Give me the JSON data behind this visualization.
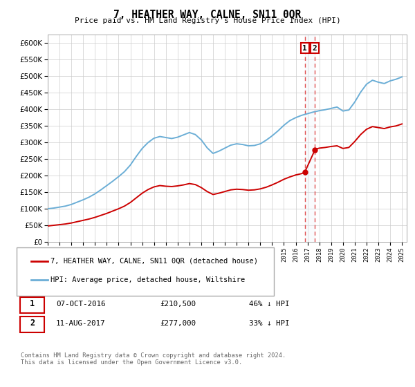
{
  "title": "7, HEATHER WAY, CALNE, SN11 0QR",
  "subtitle": "Price paid vs. HM Land Registry's House Price Index (HPI)",
  "legend_line1": "7, HEATHER WAY, CALNE, SN11 0QR (detached house)",
  "legend_line2": "HPI: Average price, detached house, Wiltshire",
  "transaction1_label": "1",
  "transaction1_date": "07-OCT-2016",
  "transaction1_price": "£210,500",
  "transaction1_hpi": "46% ↓ HPI",
  "transaction2_label": "2",
  "transaction2_date": "11-AUG-2017",
  "transaction2_price": "£277,000",
  "transaction2_hpi": "33% ↓ HPI",
  "footer": "Contains HM Land Registry data © Crown copyright and database right 2024.\nThis data is licensed under the Open Government Licence v3.0.",
  "hpi_color": "#6baed6",
  "price_color": "#cc0000",
  "dashed_color": "#e05050",
  "highlight_color": "#e8f0f8",
  "box_color": "#cc0000",
  "ylim_min": 0,
  "ylim_max": 625000,
  "transaction1_year": 2016.77,
  "transaction2_year": 2017.62,
  "transaction1_value": 210500,
  "transaction2_value": 277000,
  "years_hpi": [
    1995,
    1995.5,
    1996,
    1996.5,
    1997,
    1997.5,
    1998,
    1998.5,
    1999,
    1999.5,
    2000,
    2000.5,
    2001,
    2001.5,
    2002,
    2002.5,
    2003,
    2003.5,
    2004,
    2004.5,
    2005,
    2005.5,
    2006,
    2006.5,
    2007,
    2007.5,
    2008,
    2008.5,
    2009,
    2009.5,
    2010,
    2010.5,
    2011,
    2011.5,
    2012,
    2012.5,
    2013,
    2013.5,
    2014,
    2014.5,
    2015,
    2015.5,
    2016,
    2016.5,
    2017,
    2017.5,
    2018,
    2018.5,
    2019,
    2019.5,
    2020,
    2020.5,
    2021,
    2021.5,
    2022,
    2022.5,
    2023,
    2023.5,
    2024,
    2024.5,
    2025
  ],
  "hpi_values": [
    100000,
    102000,
    105000,
    108000,
    113000,
    120000,
    127000,
    135000,
    145000,
    157000,
    170000,
    183000,
    197000,
    212000,
    232000,
    258000,
    282000,
    300000,
    313000,
    318000,
    315000,
    312000,
    316000,
    323000,
    330000,
    324000,
    308000,
    284000,
    267000,
    274000,
    283000,
    292000,
    296000,
    294000,
    290000,
    291000,
    296000,
    307000,
    320000,
    335000,
    352000,
    366000,
    375000,
    382000,
    387000,
    392000,
    396000,
    399000,
    403000,
    407000,
    395000,
    398000,
    422000,
    452000,
    476000,
    488000,
    482000,
    478000,
    486000,
    491000,
    498000
  ],
  "price_years": [
    1995,
    1995.5,
    1996,
    1996.5,
    1997,
    1997.5,
    1998,
    1998.5,
    1999,
    1999.5,
    2000,
    2000.5,
    2001,
    2001.5,
    2002,
    2002.5,
    2003,
    2003.5,
    2004,
    2004.5,
    2005,
    2005.5,
    2006,
    2006.5,
    2007,
    2007.5,
    2008,
    2008.5,
    2009,
    2009.5,
    2010,
    2010.5,
    2011,
    2011.5,
    2012,
    2012.5,
    2013,
    2013.5,
    2014,
    2014.5,
    2015,
    2015.5,
    2016,
    2016.5,
    2016.77,
    2017.62,
    2017.7,
    2018,
    2018.5,
    2019,
    2019.5,
    2020,
    2020.5,
    2021,
    2021.5,
    2022,
    2022.5,
    2023,
    2023.5,
    2024,
    2024.5,
    2025
  ],
  "price_values": [
    48000,
    50000,
    52000,
    54000,
    57000,
    61000,
    65000,
    69000,
    74000,
    80000,
    86000,
    93000,
    100000,
    108000,
    119000,
    133000,
    147000,
    158000,
    166000,
    170000,
    168000,
    167000,
    169000,
    172000,
    176000,
    173000,
    164000,
    152000,
    143000,
    147000,
    152000,
    157000,
    159000,
    158000,
    156000,
    157000,
    160000,
    165000,
    172000,
    180000,
    189000,
    196000,
    202000,
    206000,
    210500,
    277000,
    280000,
    283000,
    285000,
    288000,
    290000,
    282000,
    285000,
    303000,
    324000,
    340000,
    348000,
    345000,
    342000,
    347000,
    350000,
    356000
  ]
}
